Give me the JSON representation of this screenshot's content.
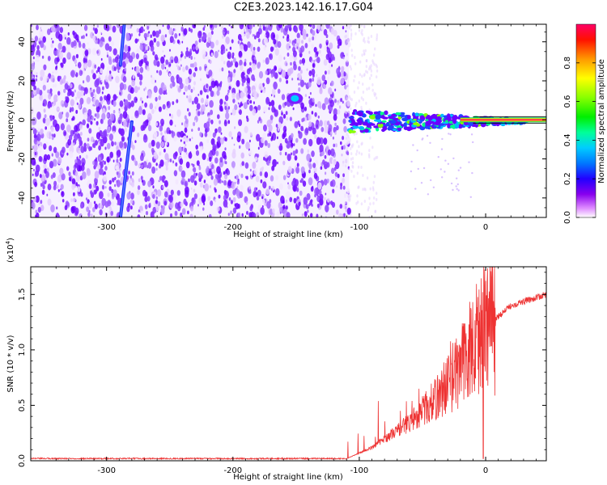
{
  "title": "C2E3.2023.142.16.17.G04",
  "chart_data": [
    {
      "type": "heatmap",
      "xlabel": "Height of straight line (km)",
      "ylabel": "Frequency (Hz)",
      "xlim": [
        -360,
        48
      ],
      "ylim": [
        -50,
        49
      ],
      "xticks": [
        -300,
        -200,
        -100,
        0
      ],
      "xtick_labels": [
        "-300",
        "-200",
        "-100",
        "0"
      ],
      "yticks": [
        -40,
        -20,
        0,
        20,
        40
      ],
      "ytick_labels": [
        "-40",
        "-20",
        "0",
        "20",
        "40"
      ],
      "colorbar": {
        "label": "Normalized spectral amplitude",
        "range": [
          0,
          1
        ],
        "ticks": [
          0.0,
          0.2,
          0.4,
          0.6,
          0.8
        ],
        "tick_labels": [
          "0.0",
          "0.2",
          "0.4",
          "0.6",
          "0.8"
        ]
      },
      "features": [
        {
          "name": "noise",
          "x_range": [
            -360,
            -108
          ],
          "y_range": [
            -50,
            49
          ],
          "amplitude": 0.15
        },
        {
          "name": "streak-upper",
          "x_start": -289,
          "y_start": 28,
          "x_end": -286,
          "y_end": 49,
          "amplitude": 0.25
        },
        {
          "name": "streak-lower",
          "x_start": -289,
          "y_start": -50,
          "x_end": -280,
          "y_end": -1,
          "amplitude": 0.25
        },
        {
          "name": "cluster",
          "x": -151,
          "y": 11,
          "amplitude": 0.3
        },
        {
          "name": "signal-band",
          "x_range": [
            -108,
            48
          ],
          "y_center": 0,
          "amplitude": 0.9
        }
      ]
    },
    {
      "type": "line",
      "xlabel": "Height of straight line (km)",
      "ylabel": "SNR (10 * v/v)",
      "scale_label": "(x10",
      "scale_exponent": "4",
      "scale_suffix": ")",
      "xlim": [
        -360,
        48
      ],
      "ylim": [
        0,
        1.75
      ],
      "xticks": [
        -300,
        -200,
        -100,
        0
      ],
      "xtick_labels": [
        "-300",
        "-200",
        "-100",
        "0"
      ],
      "yticks": [
        0.0,
        0.5,
        1.0,
        1.5
      ],
      "ytick_labels": [
        "0.0",
        "0.5",
        "1.0",
        "1.5"
      ],
      "color": "#ee3333",
      "series_profile": [
        {
          "x": -360,
          "y": 0.02
        },
        {
          "x": -110,
          "y": 0.02
        },
        {
          "x": -90,
          "y": 0.12
        },
        {
          "x": -60,
          "y": 0.35
        },
        {
          "x": -40,
          "y": 0.55
        },
        {
          "x": -30,
          "y": 0.7
        },
        {
          "x": -20,
          "y": 0.85
        },
        {
          "x": -10,
          "y": 1.05
        },
        {
          "x": 0,
          "y": 1.2
        },
        {
          "x": 20,
          "y": 1.4
        },
        {
          "x": 48,
          "y": 1.5
        }
      ]
    }
  ]
}
